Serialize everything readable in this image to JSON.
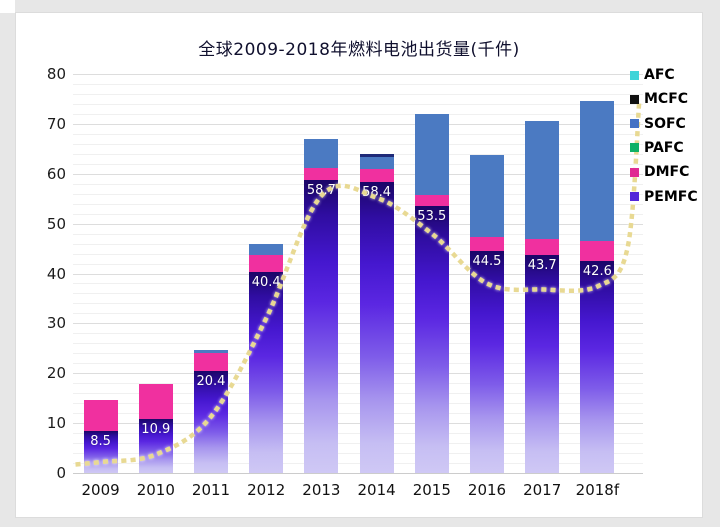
{
  "page": {
    "background": "#e7e7e7",
    "card_background": "#ffffff"
  },
  "chart_data": {
    "type": "bar",
    "stacked": true,
    "title": "全球2009-2018年燃料电池出货量(千件)",
    "unit": "千件 (thousand units)",
    "categories": [
      "2009",
      "2010",
      "2011",
      "2012",
      "2013",
      "2014",
      "2015",
      "2016",
      "2017",
      "2018f"
    ],
    "ylim": [
      0,
      80
    ],
    "yticks": [
      0,
      10,
      20,
      30,
      40,
      50,
      60,
      70,
      80
    ],
    "minor_grid_step": 2,
    "grid": true,
    "legend_position": "right",
    "legend": [
      {
        "label": "AFC",
        "color": "#3fd4d8"
      },
      {
        "label": "MCFC",
        "color": "#111111"
      },
      {
        "label": "SOFC",
        "color": "#4472c4"
      },
      {
        "label": "PAFC",
        "color": "#10b165"
      },
      {
        "label": "DMFC",
        "color": "#e02b93"
      },
      {
        "label": "PEMFC",
        "color": "#5326d9"
      }
    ],
    "series": [
      {
        "name": "PEMFC",
        "color": "#5326d9",
        "gradient": [
          "#1b0667",
          "#5b27e2",
          "#cfc8f5"
        ],
        "values": [
          8.5,
          10.9,
          20.4,
          40.4,
          58.7,
          58.4,
          53.5,
          44.5,
          43.7,
          42.6
        ]
      },
      {
        "name": "DMFC",
        "color": "#f0309f",
        "values": [
          6.1,
          6.9,
          3.6,
          3.3,
          2.5,
          2.6,
          2.3,
          2.8,
          3.2,
          4.0
        ]
      },
      {
        "name": "PAFC",
        "color": "#10b165",
        "values": [
          0,
          0,
          0,
          0,
          0,
          0,
          0,
          0,
          0,
          0
        ]
      },
      {
        "name": "SOFC",
        "color": "#4b7ac2",
        "values": [
          0,
          0,
          0.7,
          2.2,
          5.8,
          2.4,
          16.1,
          16.4,
          23.7,
          27.9
        ]
      },
      {
        "name": "MCFC",
        "color": "#1f2a78",
        "values": [
          0,
          0,
          0,
          0,
          0,
          0.5,
          0,
          0,
          0,
          0
        ]
      },
      {
        "name": "AFC",
        "color": "#3fd4d8",
        "values": [
          0,
          0,
          0,
          0,
          0,
          0,
          0,
          0,
          0,
          0
        ]
      }
    ],
    "bar_labels": {
      "series": "PEMFC",
      "values": [
        "8.5",
        "10.9",
        "20.4",
        "40.4",
        "58.7",
        "58.4",
        "53.5",
        "44.5",
        "43.7",
        "42.6"
      ]
    },
    "trendline": {
      "style": "dotted",
      "color": "#e8d993",
      "fits_series": "PEMFC",
      "values": [
        2.2,
        3.7,
        11.3,
        31.0,
        55.6,
        55.2,
        48.0,
        38.0,
        36.8,
        37.4
      ]
    },
    "totals": [
      14.6,
      17.8,
      24.7,
      45.9,
      67.0,
      63.9,
      71.9,
      63.7,
      70.6,
      74.5
    ]
  }
}
